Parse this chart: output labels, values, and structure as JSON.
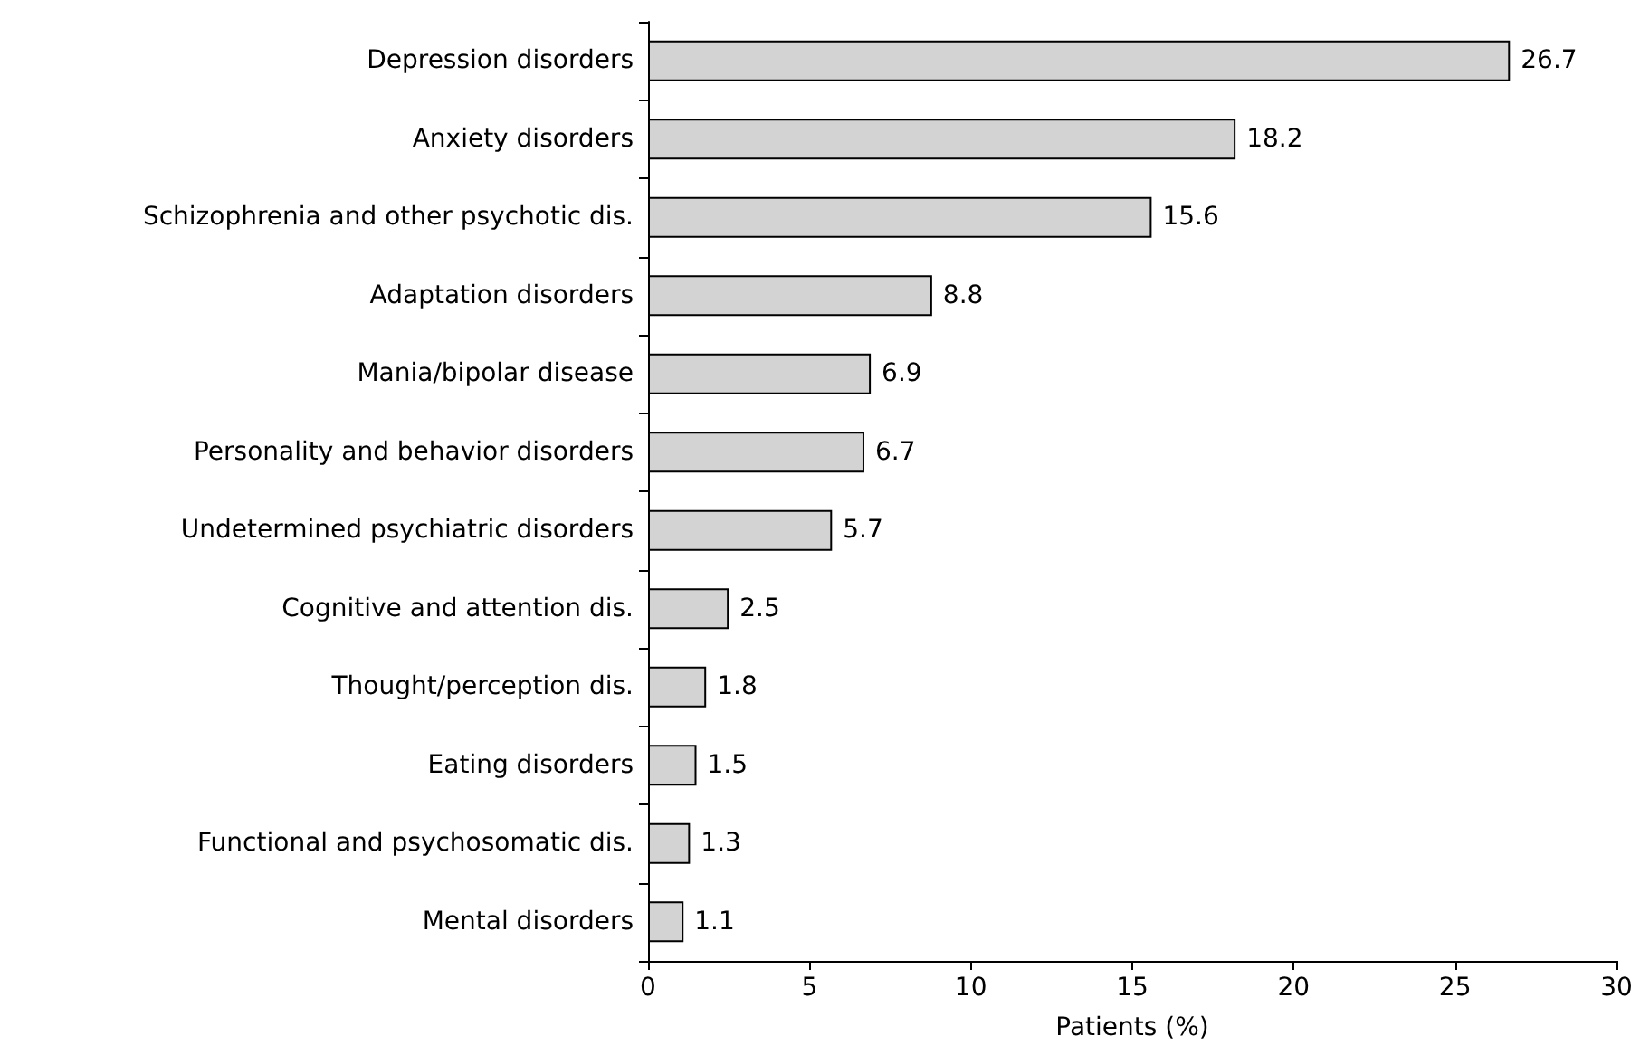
{
  "chart_data": {
    "type": "bar",
    "orientation": "horizontal",
    "xlabel": "Patients (%)",
    "categories": [
      "Depression disorders",
      "Anxiety disorders",
      "Schizophrenia and other psychotic dis.",
      "Adaptation disorders",
      "Mania/bipolar disease",
      "Personality and behavior disorders",
      "Undetermined psychiatric disorders",
      "Cognitive and attention dis.",
      "Thought/perception dis.",
      "Eating disorders",
      "Functional and psychosomatic dis.",
      "Mental disorders"
    ],
    "values": [
      26.7,
      18.2,
      15.6,
      8.8,
      6.9,
      6.7,
      5.7,
      2.5,
      1.8,
      1.5,
      1.3,
      1.1
    ],
    "color": "#d3d3d3",
    "xlim": [
      0,
      30
    ],
    "xticks": [
      0,
      5,
      10,
      15,
      20,
      25,
      30
    ],
    "data_labels": true
  }
}
